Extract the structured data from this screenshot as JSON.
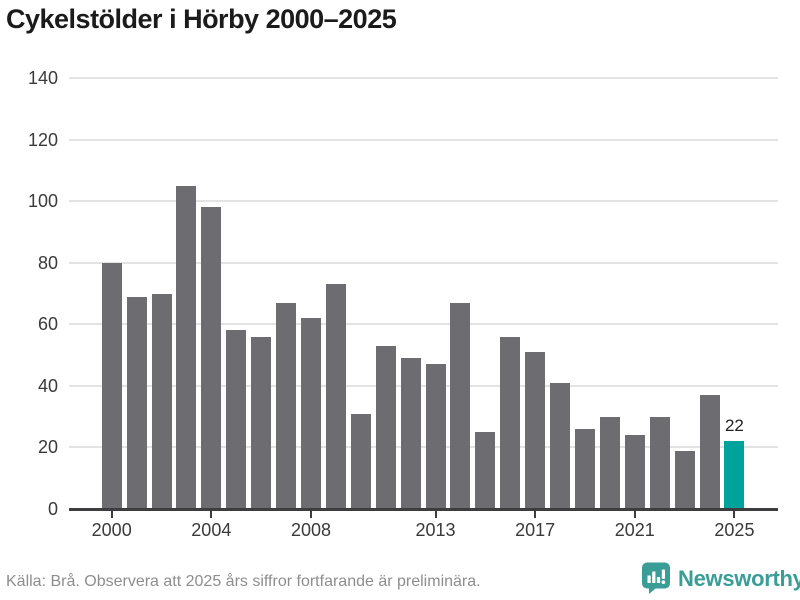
{
  "title": "Cykelstölder i Hörby 2000–2025",
  "footer": {
    "source_note": "Källa: Brå. Observera att 2025 års siffror fortfarande är preliminära."
  },
  "branding": {
    "logo_text": "Newsworthy",
    "logo_icon": "bar-chart-speech-bubble-icon"
  },
  "colors": {
    "bar": "#6c6c71",
    "highlight": "#00a39b",
    "brand": "#3a9e97",
    "gridline": "#e3e3e3",
    "axis": "#3d3d40",
    "title_text": "#1b1b1b",
    "tick_text": "#3a3a3a",
    "footer_text": "#8e8e8e",
    "value_label_text": "#222222"
  },
  "chart_data": {
    "type": "bar",
    "title": "Cykelstölder i Hörby 2000–2025",
    "xlabel": "",
    "ylabel": "",
    "categories": [
      2000,
      2001,
      2002,
      2003,
      2004,
      2005,
      2006,
      2007,
      2008,
      2009,
      2010,
      2011,
      2012,
      2013,
      2014,
      2015,
      2016,
      2017,
      2018,
      2019,
      2020,
      2021,
      2022,
      2023,
      2024,
      2025
    ],
    "values": [
      80,
      69,
      70,
      105,
      98,
      58,
      56,
      67,
      62,
      73,
      31,
      53,
      49,
      47,
      67,
      25,
      56,
      51,
      41,
      26,
      30,
      24,
      30,
      19,
      37,
      22
    ],
    "highlighted_category": 2025,
    "highlighted_value_label": "22",
    "x_tick_labels": [
      "2000",
      "2004",
      "2008",
      "2013",
      "2017",
      "2021",
      "2025"
    ],
    "y_ticks": [
      0,
      20,
      40,
      60,
      80,
      100,
      120,
      140
    ],
    "ylim": [
      0,
      140
    ],
    "grid": "horizontal-only",
    "legend": "none"
  }
}
